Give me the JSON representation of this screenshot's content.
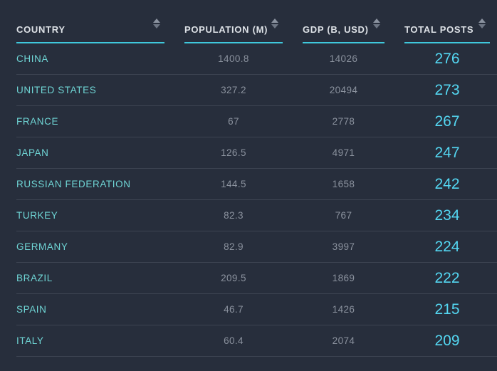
{
  "colors": {
    "background": "#272e3c",
    "row_divider": "#3d4452",
    "header_text": "#dde1e6",
    "header_underline_accent": "#3fc8dc",
    "country_text": "#6fd5d5",
    "number_text": "#8b929e",
    "total_posts_text": "#54d7f2",
    "sort_icon": "#8b93a0"
  },
  "icons": {
    "sort": "sort-arrows-up-down"
  },
  "table": {
    "columns": [
      {
        "label": "COUNTRY"
      },
      {
        "label": "POPULATION (M)"
      },
      {
        "label": "GDP (B, USD)"
      },
      {
        "label": "TOTAL POSTS"
      }
    ],
    "rows": [
      {
        "country": "CHINA",
        "population": "1400.8",
        "gdp": "14026",
        "posts": "276"
      },
      {
        "country": "UNITED STATES",
        "population": "327.2",
        "gdp": "20494",
        "posts": "273"
      },
      {
        "country": "FRANCE",
        "population": "67",
        "gdp": "2778",
        "posts": "267"
      },
      {
        "country": "JAPAN",
        "population": "126.5",
        "gdp": "4971",
        "posts": "247"
      },
      {
        "country": "RUSSIAN FEDERATION",
        "population": "144.5",
        "gdp": "1658",
        "posts": "242"
      },
      {
        "country": "TURKEY",
        "population": "82.3",
        "gdp": "767",
        "posts": "234"
      },
      {
        "country": "GERMANY",
        "population": "82.9",
        "gdp": "3997",
        "posts": "224"
      },
      {
        "country": "BRAZIL",
        "population": "209.5",
        "gdp": "1869",
        "posts": "222"
      },
      {
        "country": "SPAIN",
        "population": "46.7",
        "gdp": "1426",
        "posts": "215"
      },
      {
        "country": "ITALY",
        "population": "60.4",
        "gdp": "2074",
        "posts": "209"
      }
    ]
  },
  "chart_data": {
    "type": "table",
    "columns": [
      "COUNTRY",
      "POPULATION (M)",
      "GDP (B, USD)",
      "TOTAL POSTS"
    ],
    "rows": [
      [
        "CHINA",
        1400.8,
        14026,
        276
      ],
      [
        "UNITED STATES",
        327.2,
        20494,
        273
      ],
      [
        "FRANCE",
        67,
        2778,
        267
      ],
      [
        "JAPAN",
        126.5,
        4971,
        247
      ],
      [
        "RUSSIAN FEDERATION",
        144.5,
        1658,
        242
      ],
      [
        "TURKEY",
        82.3,
        767,
        234
      ],
      [
        "GERMANY",
        82.9,
        3997,
        224
      ],
      [
        "BRAZIL",
        209.5,
        1869,
        222
      ],
      [
        "SPAIN",
        46.7,
        1426,
        215
      ],
      [
        "ITALY",
        60.4,
        2074,
        209
      ]
    ]
  }
}
